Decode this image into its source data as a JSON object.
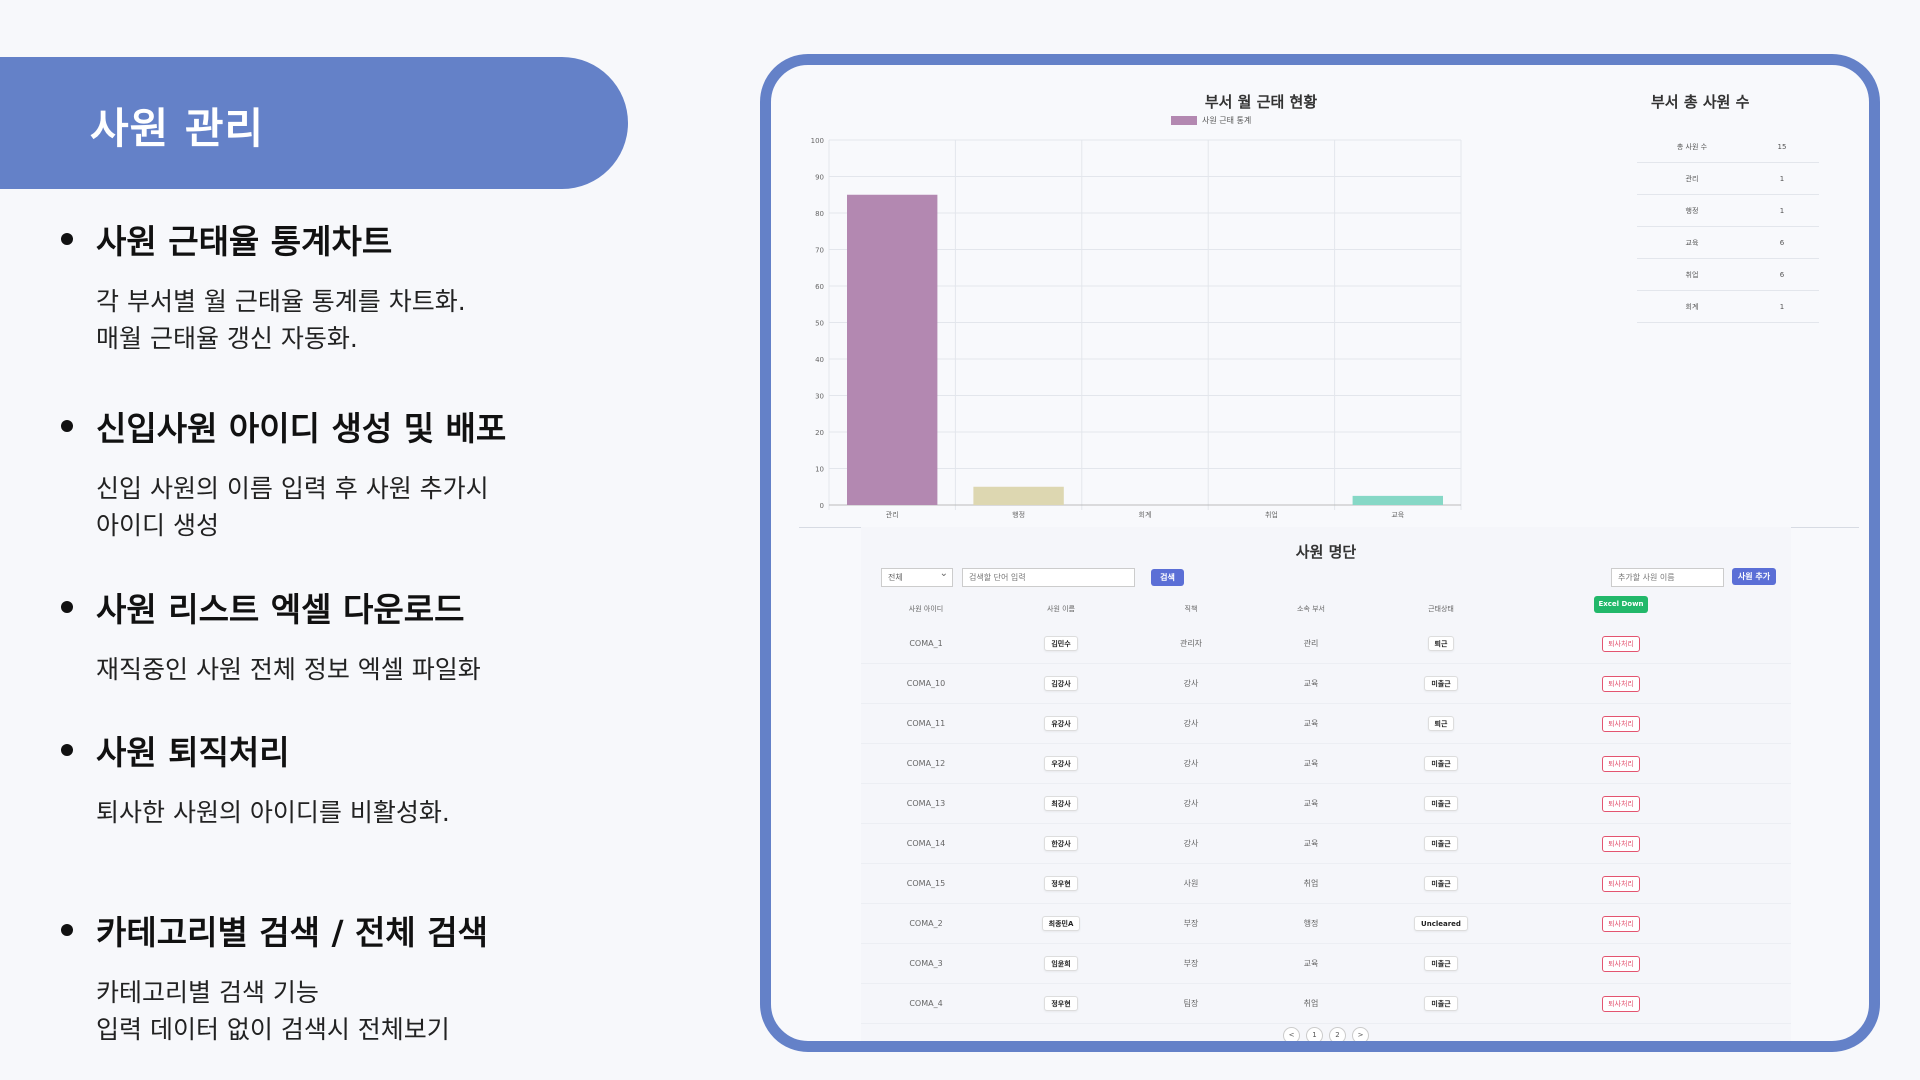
{
  "page": {
    "title": "사원 관리"
  },
  "features": [
    {
      "heading": "사원 근태율 통계차트",
      "lines": [
        "각 부서별 월 근태율 통계를 차트화.",
        "매월 근태율 갱신 자동화."
      ]
    },
    {
      "heading": "신입사원 아이디 생성 및 배포",
      "lines": [
        "신입 사원의 이름 입력 후 사원 추가시",
        "아이디 생성"
      ]
    },
    {
      "heading": "사원 리스트 엑셀 다운로드",
      "lines": [
        "재직중인 사원 전체 정보 엑셀 파일화"
      ]
    },
    {
      "heading": "사원 퇴직처리",
      "lines": [
        "퇴사한 사원의 아이디를 비활성화."
      ]
    },
    {
      "heading": "카테고리별 검색 / 전체 검색",
      "lines": [
        "카테고리별 검색 기능",
        "입력 데이터 없이 검색시 전체보기"
      ]
    }
  ],
  "chart_data": {
    "type": "bar",
    "title": "부서 월 근태 현황",
    "categories": [
      "관리",
      "행정",
      "회계",
      "취업",
      "교육"
    ],
    "series": [
      {
        "name": "사원 근태 통계",
        "values": [
          85,
          5,
          0,
          0,
          2.5
        ]
      }
    ],
    "colors": [
      "#b388b1",
      "#ddd7b1",
      "#c9a5c8",
      "#a7b9e1",
      "#86d8c6"
    ],
    "ylim": [
      0,
      100
    ],
    "yticks": [
      0,
      10,
      20,
      30,
      40,
      50,
      60,
      70,
      80,
      90,
      100
    ],
    "grid": true,
    "legend": "top"
  },
  "summary": {
    "title": "부서 총 사원 수",
    "rows": [
      {
        "label": "총 사원 수",
        "value": "15"
      },
      {
        "label": "관리",
        "value": "1"
      },
      {
        "label": "행정",
        "value": "1"
      },
      {
        "label": "교육",
        "value": "6"
      },
      {
        "label": "취업",
        "value": "6"
      },
      {
        "label": "회계",
        "value": "1"
      }
    ]
  },
  "roster": {
    "title": "사원 명단",
    "category_value": "전체",
    "search_placeholder": "검색할 단어 입력",
    "search_label": "검색",
    "add_placeholder": "추가할 사원 이름",
    "add_label": "사원 추가",
    "excel_label": "Excel Down",
    "headers": [
      "사원 아이디",
      "사원 이름",
      "직책",
      "소속 부서",
      "근태상태"
    ],
    "rows": [
      {
        "id": "COMA_1",
        "name": "김민수",
        "position": "관리자",
        "dept": "관리",
        "status": "퇴근",
        "action": "퇴사처리"
      },
      {
        "id": "COMA_10",
        "name": "김강사",
        "position": "강사",
        "dept": "교육",
        "status": "미출근",
        "action": "퇴사처리"
      },
      {
        "id": "COMA_11",
        "name": "유강사",
        "position": "강사",
        "dept": "교육",
        "status": "퇴근",
        "action": "퇴사처리"
      },
      {
        "id": "COMA_12",
        "name": "우강사",
        "position": "강사",
        "dept": "교육",
        "status": "미출근",
        "action": "퇴사처리"
      },
      {
        "id": "COMA_13",
        "name": "최강사",
        "position": "강사",
        "dept": "교육",
        "status": "미출근",
        "action": "퇴사처리"
      },
      {
        "id": "COMA_14",
        "name": "한강사",
        "position": "강사",
        "dept": "교육",
        "status": "미출근",
        "action": "퇴사처리"
      },
      {
        "id": "COMA_15",
        "name": "정우현",
        "position": "사원",
        "dept": "취업",
        "status": "미출근",
        "action": "퇴사처리"
      },
      {
        "id": "COMA_2",
        "name": "최종민A",
        "position": "부장",
        "dept": "행정",
        "status": "Uncleared",
        "action": "퇴사처리"
      },
      {
        "id": "COMA_3",
        "name": "임윤희",
        "position": "부장",
        "dept": "교육",
        "status": "미출근",
        "action": "퇴사처리"
      },
      {
        "id": "COMA_4",
        "name": "정우현",
        "position": "팀장",
        "dept": "취업",
        "status": "미출근",
        "action": "퇴사처리"
      }
    ],
    "pagination": {
      "prev": "<",
      "pages": [
        "1",
        "2"
      ],
      "next": ">"
    }
  }
}
